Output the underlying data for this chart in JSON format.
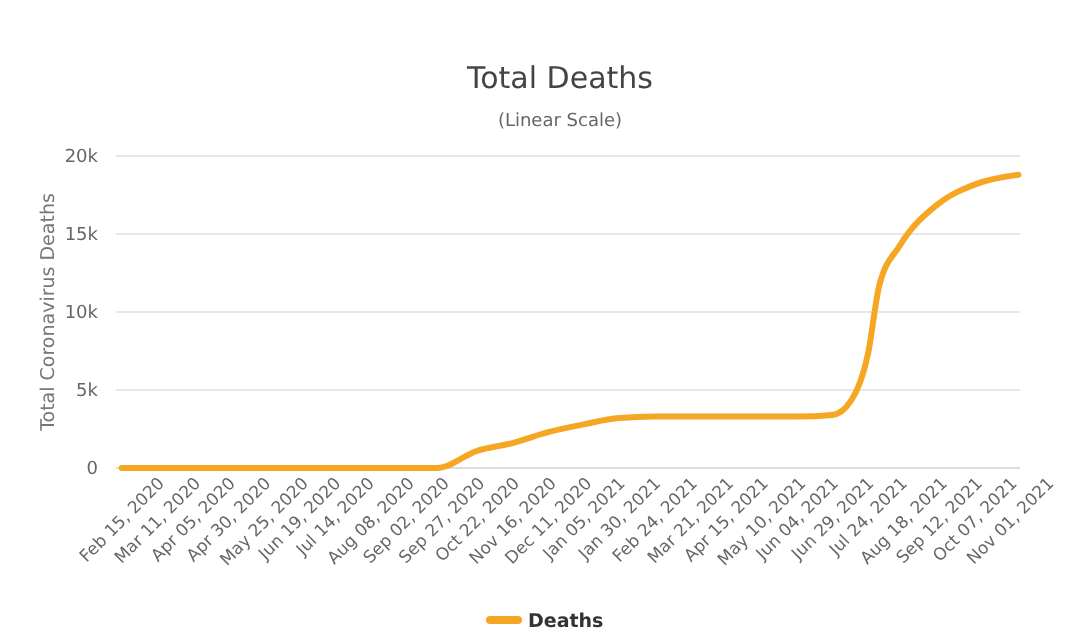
{
  "chart_data": {
    "type": "line",
    "title": "Total Deaths",
    "subtitle": "(Linear Scale)",
    "ylabel": "Total Coronavirus Deaths",
    "x": [
      "2020-02-15",
      "2020-03-11",
      "2020-04-05",
      "2020-04-30",
      "2020-05-25",
      "2020-06-19",
      "2020-07-14",
      "2020-08-08",
      "2020-09-02",
      "2020-09-24",
      "2020-10-22",
      "2020-11-16",
      "2020-12-11",
      "2021-01-05",
      "2021-01-30",
      "2021-02-24",
      "2021-03-21",
      "2021-04-15",
      "2021-05-10",
      "2021-06-04",
      "2021-06-29",
      "2021-07-12",
      "2021-07-24",
      "2021-08-01",
      "2021-08-15",
      "2021-09-11",
      "2021-10-08",
      "2021-11-07"
    ],
    "series": [
      {
        "name": "Deaths",
        "color": "#f5a623",
        "values": [
          0,
          0,
          0,
          0,
          0,
          0,
          0,
          0,
          0,
          0,
          1100,
          1600,
          2300,
          2800,
          3200,
          3300,
          3300,
          3300,
          3300,
          3300,
          3400,
          4300,
          7300,
          11700,
          14200,
          16900,
          18200,
          18800
        ]
      }
    ],
    "xlim": [
      "2020-02-11",
      "2021-11-08"
    ],
    "xticks": [
      {
        "value": "2020-02-15",
        "label": "Feb 15, 2020"
      },
      {
        "value": "2020-03-11",
        "label": "Mar 11, 2020"
      },
      {
        "value": "2020-04-05",
        "label": "Apr 05, 2020"
      },
      {
        "value": "2020-04-30",
        "label": "Apr 30, 2020"
      },
      {
        "value": "2020-05-25",
        "label": "May 25, 2020"
      },
      {
        "value": "2020-06-19",
        "label": "Jun 19, 2020"
      },
      {
        "value": "2020-07-14",
        "label": "Jul 14, 2020"
      },
      {
        "value": "2020-08-08",
        "label": "Aug 08, 2020"
      },
      {
        "value": "2020-09-02",
        "label": "Sep 02, 2020"
      },
      {
        "value": "2020-09-27",
        "label": "Sep 27, 2020"
      },
      {
        "value": "2020-10-22",
        "label": "Oct 22, 2020"
      },
      {
        "value": "2020-11-16",
        "label": "Nov 16, 2020"
      },
      {
        "value": "2020-12-11",
        "label": "Dec 11, 2020"
      },
      {
        "value": "2021-01-05",
        "label": "Jan 05, 2021"
      },
      {
        "value": "2021-01-30",
        "label": "Jan 30, 2021"
      },
      {
        "value": "2021-02-24",
        "label": "Feb 24, 2021"
      },
      {
        "value": "2021-03-21",
        "label": "Mar 21, 2021"
      },
      {
        "value": "2021-04-15",
        "label": "Apr 15, 2021"
      },
      {
        "value": "2021-05-10",
        "label": "May 10, 2021"
      },
      {
        "value": "2021-06-04",
        "label": "Jun 04, 2021"
      },
      {
        "value": "2021-06-29",
        "label": "Jun 29, 2021"
      },
      {
        "value": "2021-07-24",
        "label": "Jul 24, 2021"
      },
      {
        "value": "2021-08-18",
        "label": "Aug 18, 2021"
      },
      {
        "value": "2021-09-12",
        "label": "Sep 12, 2021"
      },
      {
        "value": "2021-10-07",
        "label": "Oct 07, 2021"
      },
      {
        "value": "2021-11-01",
        "label": "Nov 01, 2021"
      }
    ],
    "ylim": [
      0,
      20000
    ],
    "yticks": [
      {
        "value": 0,
        "label": "0"
      },
      {
        "value": 5000,
        "label": "5k"
      },
      {
        "value": 10000,
        "label": "10k"
      },
      {
        "value": 15000,
        "label": "15k"
      },
      {
        "value": 20000,
        "label": "20k"
      }
    ],
    "grid": "y",
    "legend": "bottom",
    "marker": "none",
    "line_style": "solid"
  }
}
